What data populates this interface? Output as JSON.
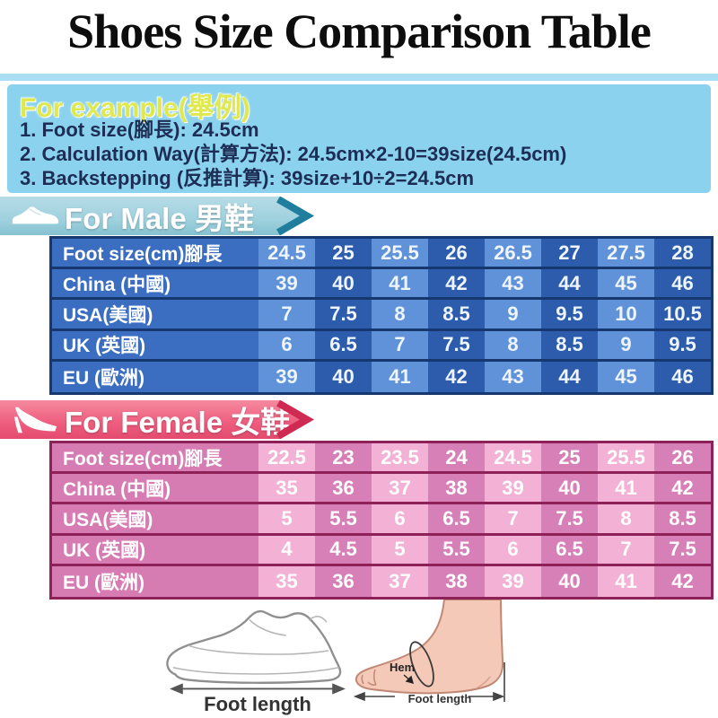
{
  "page": {
    "title": "Shoes Size Comparison Table"
  },
  "example": {
    "heading": "For example(舉例)",
    "line1": "1. Foot size(腳長): 24.5cm",
    "line2": "2. Calculation Way(計算方法):  24.5cm×2-10=39size(24.5cm)",
    "line3": "3. Backstepping (反推計算):  39size+10÷2=24.5cm"
  },
  "male": {
    "banner_label": "For Male 男鞋",
    "icon": "mens-shoe-icon",
    "table": {
      "rows": [
        {
          "label": "Foot size(cm)腳長",
          "values": [
            "24.5",
            "25",
            "25.5",
            "26",
            "26.5",
            "27",
            "27.5",
            "28"
          ]
        },
        {
          "label": "China (中國)",
          "values": [
            "39",
            "40",
            "41",
            "42",
            "43",
            "44",
            "45",
            "46"
          ]
        },
        {
          "label": "USA(美國)",
          "values": [
            "7",
            "7.5",
            "8",
            "8.5",
            "9",
            "9.5",
            "10",
            "10.5"
          ]
        },
        {
          "label": "UK (英國)",
          "values": [
            "6",
            "6.5",
            "7",
            "7.5",
            "8",
            "8.5",
            "9",
            "9.5"
          ]
        },
        {
          "label": "EU (歐洲)",
          "values": [
            "39",
            "40",
            "41",
            "42",
            "43",
            "44",
            "45",
            "46"
          ]
        }
      ]
    }
  },
  "female": {
    "banner_label": "For Female 女鞋",
    "icon": "high-heel-icon",
    "table": {
      "rows": [
        {
          "label": "Foot size(cm)腳長",
          "values": [
            "22.5",
            "23",
            "23.5",
            "24",
            "24.5",
            "25",
            "25.5",
            "26"
          ]
        },
        {
          "label": "China (中國)",
          "values": [
            "35",
            "36",
            "37",
            "38",
            "39",
            "40",
            "41",
            "42"
          ]
        },
        {
          "label": "USA(美國)",
          "values": [
            "5",
            "5.5",
            "6",
            "6.5",
            "7",
            "7.5",
            "8",
            "8.5"
          ]
        },
        {
          "label": "UK (英國)",
          "values": [
            "4",
            "4.5",
            "5",
            "5.5",
            "6",
            "6.5",
            "7",
            "7.5"
          ]
        },
        {
          "label": "EU (歐洲)",
          "values": [
            "35",
            "36",
            "37",
            "38",
            "39",
            "40",
            "41",
            "42"
          ]
        }
      ]
    }
  },
  "illustrations": {
    "shoe_sketch": {
      "caption": "Foot length"
    },
    "foot_diagram": {
      "hem_label": "Hem",
      "length_label": "Foot length"
    }
  },
  "colors": {
    "example_bg": "#8bd2ee",
    "example_heading": "#dfe94f",
    "example_text": "#1d2d55",
    "male_banner": "#9fd1de",
    "male_banner_arrow": "#1f7e9d",
    "male_cell_light": "#5f92d8",
    "male_cell_dark": "#2c5cab",
    "male_label_bg": "#3b6ec0",
    "male_separator": "#16386e",
    "female_banner": "#ef5f80",
    "female_banner_arrow": "#cf2a52",
    "female_cell_light": "#f3b2d5",
    "female_cell_dark": "#d77fb7",
    "female_label_bg": "#d67cb2",
    "female_separator": "#8e2157",
    "foot_skin": "#f4c9b8",
    "foot_outline": "#c18875",
    "sketch_stroke": "#8f8f8f"
  }
}
